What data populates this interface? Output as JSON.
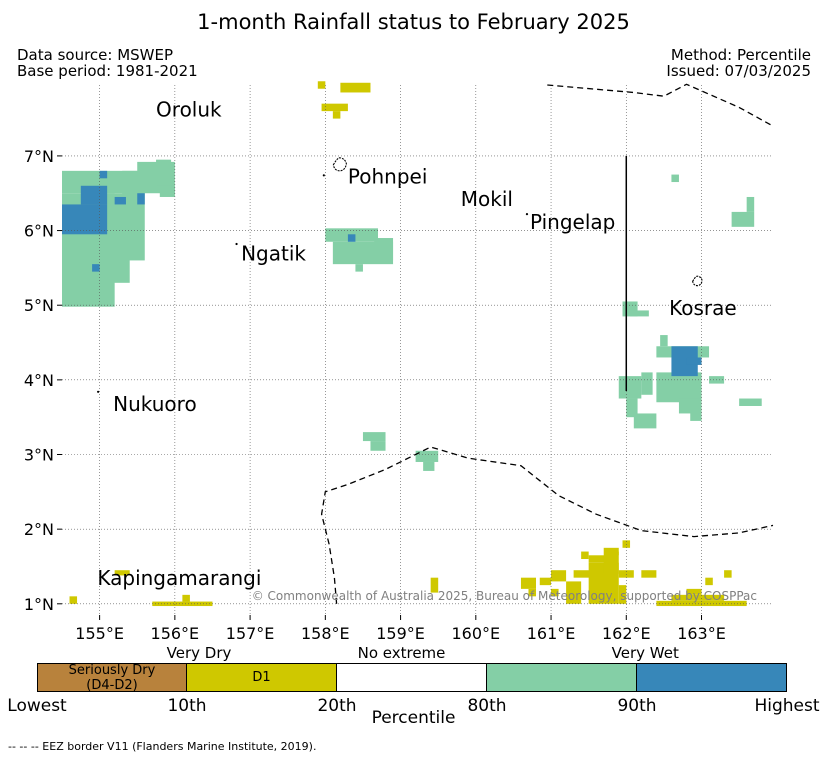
{
  "title": "1-month Rainfall status to February 2025",
  "header": {
    "data_source": "Data source: MSWEP",
    "base_period": "Base period: 1981-2021",
    "method": "Method: Percentile",
    "issued": "Issued: 07/03/2025"
  },
  "map": {
    "lon_range": [
      154.5,
      163.95
    ],
    "lat_range": [
      0.85,
      7.95
    ],
    "lon_ticks": [
      {
        "value": 155,
        "label": "155°E"
      },
      {
        "value": 156,
        "label": "156°E"
      },
      {
        "value": 157,
        "label": "157°E"
      },
      {
        "value": 158,
        "label": "158°E"
      },
      {
        "value": 159,
        "label": "159°E"
      },
      {
        "value": 160,
        "label": "160°E"
      },
      {
        "value": 161,
        "label": "161°E"
      },
      {
        "value": 162,
        "label": "162°E"
      },
      {
        "value": 163,
        "label": "163°E"
      }
    ],
    "lat_ticks": [
      {
        "value": 1,
        "label": "1°N"
      },
      {
        "value": 2,
        "label": "2°N"
      },
      {
        "value": 3,
        "label": "3°N"
      },
      {
        "value": 4,
        "label": "4°N"
      },
      {
        "value": 5,
        "label": "5°N"
      },
      {
        "value": 6,
        "label": "6°N"
      },
      {
        "value": 7,
        "label": "7°N"
      }
    ],
    "place_labels": [
      {
        "name": "Oroluk",
        "lon": 155.75,
        "lat": 7.53
      },
      {
        "name": "Pohnpei",
        "lon": 158.3,
        "lat": 6.63
      },
      {
        "name": "Mokil",
        "lon": 159.8,
        "lat": 6.33
      },
      {
        "name": "Pingelap",
        "lon": 160.72,
        "lat": 6.02
      },
      {
        "name": "Ngatik",
        "lon": 156.88,
        "lat": 5.6
      },
      {
        "name": "Kosrae",
        "lon": 162.57,
        "lat": 4.87
      },
      {
        "name": "Nukuoro",
        "lon": 155.18,
        "lat": 3.58
      },
      {
        "name": "Kapingamarangi",
        "lon": 154.97,
        "lat": 1.25
      }
    ],
    "copyright": "© Commonwealth of Australia 2025, Bureau of Meteorology, supported by COSPPac",
    "colors": {
      "seriously_dry": "#b8823c",
      "d1": "#cfc800",
      "very_wet": "#84cfa6",
      "highest": "#3787b9"
    },
    "cells": {
      "very_wet": [
        [
          154.5,
          6.5,
          155.5,
          6.8
        ],
        [
          154.5,
          4.98,
          155.2,
          6.5
        ],
        [
          155.0,
          5.3,
          155.4,
          6.5
        ],
        [
          155.3,
          5.6,
          155.6,
          6.8
        ],
        [
          155.5,
          6.5,
          156.0,
          6.92
        ],
        [
          155.8,
          6.45,
          156.0,
          6.6
        ],
        [
          155.75,
          6.6,
          155.95,
          6.95
        ],
        [
          158.0,
          5.85,
          158.7,
          6.03
        ],
        [
          158.1,
          5.55,
          158.9,
          5.85
        ],
        [
          158.4,
          5.45,
          158.5,
          5.55
        ],
        [
          158.65,
          5.6,
          158.9,
          5.9
        ],
        [
          163.4,
          6.05,
          163.7,
          6.25
        ],
        [
          163.6,
          6.25,
          163.7,
          6.45
        ],
        [
          162.6,
          6.65,
          162.7,
          6.75
        ],
        [
          161.95,
          4.85,
          162.15,
          5.05
        ],
        [
          162.05,
          4.85,
          162.3,
          4.93
        ],
        [
          161.9,
          3.75,
          162.2,
          4.05
        ],
        [
          162.2,
          3.8,
          162.35,
          4.1
        ],
        [
          162.0,
          3.5,
          162.15,
          3.75
        ],
        [
          162.1,
          3.35,
          162.4,
          3.55
        ],
        [
          162.4,
          3.7,
          163.0,
          4.1
        ],
        [
          162.4,
          4.3,
          163.1,
          4.45
        ],
        [
          162.45,
          4.45,
          162.55,
          4.6
        ],
        [
          162.7,
          3.55,
          163.0,
          3.75
        ],
        [
          162.85,
          3.45,
          163.0,
          3.6
        ],
        [
          163.1,
          3.95,
          163.3,
          4.05
        ],
        [
          163.5,
          3.65,
          163.8,
          3.75
        ],
        [
          158.5,
          3.18,
          158.8,
          3.3
        ],
        [
          158.6,
          3.05,
          158.8,
          3.18
        ],
        [
          159.2,
          2.9,
          159.5,
          3.05
        ],
        [
          159.3,
          2.78,
          159.45,
          2.9
        ]
      ],
      "highest": [
        [
          154.5,
          5.95,
          155.1,
          6.35
        ],
        [
          154.75,
          6.35,
          155.1,
          6.6
        ],
        [
          155.0,
          6.7,
          155.1,
          6.8
        ],
        [
          155.2,
          6.35,
          155.35,
          6.45
        ],
        [
          155.5,
          6.35,
          155.6,
          6.5
        ],
        [
          158.3,
          5.85,
          158.4,
          5.95
        ],
        [
          154.9,
          5.45,
          155.0,
          5.55
        ],
        [
          162.6,
          4.05,
          162.95,
          4.45
        ],
        [
          162.8,
          4.2,
          163.0,
          4.3
        ]
      ],
      "d1": [
        [
          157.9,
          7.9,
          158.0,
          8.0
        ],
        [
          158.2,
          7.85,
          158.6,
          7.98
        ],
        [
          157.95,
          7.6,
          158.3,
          7.7
        ],
        [
          158.1,
          7.5,
          158.2,
          7.6
        ],
        [
          154.6,
          1.0,
          154.7,
          1.1
        ],
        [
          155.7,
          0.97,
          156.5,
          1.03
        ],
        [
          156.1,
          1.03,
          156.2,
          1.12
        ],
        [
          155.2,
          1.38,
          155.4,
          1.45
        ],
        [
          159.4,
          1.15,
          159.5,
          1.35
        ],
        [
          160.6,
          1.2,
          160.8,
          1.35
        ],
        [
          160.7,
          1.1,
          160.8,
          1.2
        ],
        [
          160.85,
          1.25,
          161.0,
          1.35
        ],
        [
          161.0,
          1.3,
          161.2,
          1.45
        ],
        [
          161.0,
          1.1,
          161.1,
          1.2
        ],
        [
          161.2,
          1.0,
          161.4,
          1.3
        ],
        [
          161.3,
          1.35,
          161.6,
          1.45
        ],
        [
          161.5,
          1.0,
          161.9,
          1.55
        ],
        [
          161.5,
          1.55,
          161.8,
          1.65
        ],
        [
          161.4,
          1.6,
          161.5,
          1.7
        ],
        [
          161.7,
          1.4,
          161.9,
          1.75
        ],
        [
          161.8,
          1.65,
          161.9,
          1.7
        ],
        [
          161.95,
          1.75,
          162.05,
          1.85
        ],
        [
          161.9,
          1.35,
          162.1,
          1.45
        ],
        [
          161.9,
          1.0,
          162.0,
          1.25
        ],
        [
          162.2,
          1.35,
          162.4,
          1.45
        ],
        [
          162.4,
          0.97,
          163.6,
          1.04
        ],
        [
          162.6,
          1.04,
          163.3,
          1.12
        ],
        [
          162.8,
          1.12,
          163.0,
          1.2
        ],
        [
          163.05,
          1.25,
          163.15,
          1.35
        ],
        [
          163.3,
          1.35,
          163.4,
          1.45
        ]
      ]
    },
    "islands": [
      {
        "lon": 158.2,
        "lat": 6.88,
        "size": 2.2
      },
      {
        "lon": 162.95,
        "lat": 5.32,
        "size": 1.6
      },
      {
        "lon": 157.98,
        "lat": 6.74,
        "size": 0.6
      },
      {
        "lon": 156.82,
        "lat": 5.82,
        "size": 0.4
      },
      {
        "lon": 160.68,
        "lat": 6.22,
        "size": 0.4
      },
      {
        "lon": 154.98,
        "lat": 3.84,
        "size": 0.4
      }
    ],
    "eez_lines": [
      [
        [
          160.95,
          7.95
        ],
        [
          162.1,
          7.85
        ],
        [
          162.5,
          7.8
        ],
        [
          162.8,
          7.96
        ],
        [
          163.5,
          7.65
        ],
        [
          163.95,
          7.4
        ]
      ],
      [
        [
          158.15,
          1.0
        ],
        [
          158.12,
          1.35
        ],
        [
          158.05,
          1.8
        ],
        [
          157.95,
          2.2
        ],
        [
          158.0,
          2.5
        ],
        [
          158.3,
          2.6
        ],
        [
          158.8,
          2.8
        ],
        [
          159.4,
          3.1
        ],
        [
          159.9,
          2.95
        ],
        [
          160.6,
          2.85
        ],
        [
          161.1,
          2.45
        ],
        [
          161.6,
          2.2
        ],
        [
          162.2,
          1.98
        ],
        [
          162.9,
          1.9
        ],
        [
          163.5,
          1.95
        ],
        [
          163.95,
          2.05
        ]
      ]
    ],
    "vertical_line": {
      "lon": 162.0,
      "lat_from": 3.85,
      "lat_to": 7.0
    }
  },
  "legend": {
    "top_labels": [
      {
        "text": "Very Dry",
        "pos": 0.216
      },
      {
        "text": "No extreme",
        "pos": 0.486
      },
      {
        "text": "Very Wet",
        "pos": 0.811
      }
    ],
    "boxes": [
      {
        "label": "Seriously Dry\n(D4-D2)",
        "color": "#b8823c"
      },
      {
        "label": "D1",
        "color": "#cfc800"
      },
      {
        "label": "",
        "color": "#ffffff"
      },
      {
        "label": "",
        "color": "#84cfa6"
      },
      {
        "label": "",
        "color": "#3787b9"
      }
    ],
    "ticks": [
      {
        "text": "Lowest",
        "pos": 0.0
      },
      {
        "text": "10th",
        "pos": 0.2
      },
      {
        "text": "20th",
        "pos": 0.4
      },
      {
        "text": "80th",
        "pos": 0.6
      },
      {
        "text": "90th",
        "pos": 0.8
      },
      {
        "text": "Highest",
        "pos": 1.0
      }
    ],
    "axis_label": "Percentile",
    "eez_note": "--  --  -- EEZ border V11 (Flanders Marine Institute, 2019)."
  }
}
